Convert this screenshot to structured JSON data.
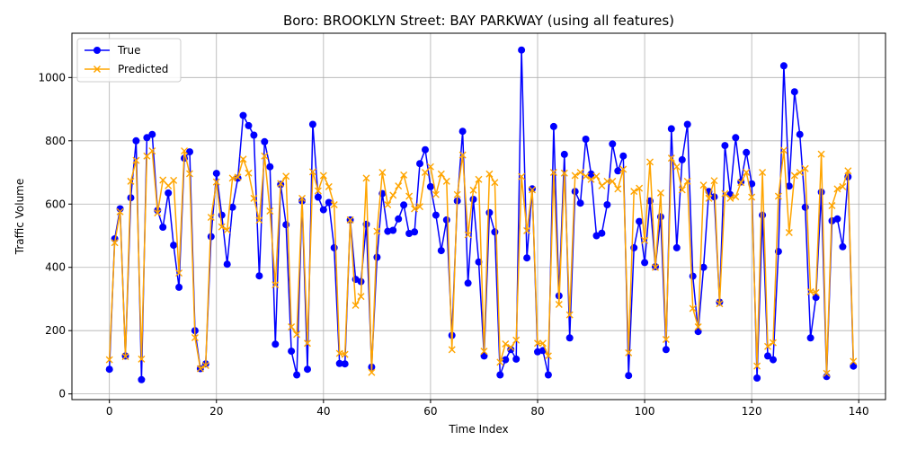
{
  "chart_data": {
    "type": "line",
    "title": "Boro: BROOKLYN Street: BAY PARKWAY (using all features)",
    "xlabel": "Time Index",
    "ylabel": "Traffic Volume",
    "xlim": [
      -7,
      145
    ],
    "ylim": [
      -18,
      1140
    ],
    "xticks": [
      0,
      20,
      40,
      60,
      80,
      100,
      120,
      140
    ],
    "yticks": [
      0,
      200,
      400,
      600,
      800,
      1000
    ],
    "xtick_labels": [
      "0",
      "20",
      "40",
      "60",
      "80",
      "100",
      "120",
      "140"
    ],
    "ytick_labels": [
      "0",
      "200",
      "400",
      "600",
      "800",
      "1000"
    ],
    "grid": true,
    "legend_position": "top-left",
    "x_start": 0,
    "series": [
      {
        "name": "True",
        "color": "#0000ff",
        "marker": "circle",
        "values": [
          78,
          490,
          585,
          120,
          620,
          800,
          45,
          810,
          820,
          580,
          527,
          635,
          470,
          337,
          745,
          765,
          200,
          80,
          95,
          497,
          697,
          565,
          410,
          590,
          682,
          880,
          848,
          818,
          373,
          797,
          718,
          157,
          662,
          535,
          135,
          60,
          610,
          78,
          852,
          622,
          582,
          605,
          462,
          96,
          95,
          550,
          362,
          355,
          536,
          85,
          432,
          633,
          514,
          517,
          553,
          597,
          507,
          512,
          728,
          772,
          655,
          565,
          453,
          550,
          185,
          610,
          830,
          350,
          615,
          417,
          120,
          573,
          512,
          60,
          108,
          140,
          110,
          1087,
          430,
          648,
          133,
          137,
          60,
          845,
          310,
          757,
          177,
          640,
          603,
          805,
          695,
          500,
          508,
          598,
          790,
          705,
          752,
          58,
          462,
          545,
          415,
          610,
          402,
          560,
          140,
          838,
          462,
          740,
          852,
          372,
          197,
          400,
          640,
          623,
          290,
          785,
          630,
          810,
          670,
          763,
          664,
          50,
          565,
          120,
          108,
          450,
          1037,
          657,
          955,
          820,
          590,
          177,
          305,
          638,
          55,
          547,
          553,
          465,
          686,
          88
        ]
      },
      {
        "name": "Predicted",
        "color": "#ffa500",
        "marker": "x",
        "values": [
          108,
          478,
          576,
          118,
          672,
          738,
          110,
          752,
          768,
          572,
          676,
          658,
          675,
          382,
          768,
          696,
          178,
          80,
          90,
          558,
          670,
          528,
          518,
          682,
          685,
          742,
          698,
          618,
          549,
          752,
          578,
          345,
          665,
          688,
          212,
          188,
          618,
          160,
          702,
          642,
          690,
          655,
          598,
          128,
          125,
          550,
          280,
          308,
          682,
          68,
          514,
          700,
          598,
          628,
          657,
          692,
          625,
          585,
          592,
          700,
          718,
          630,
          695,
          672,
          140,
          630,
          755,
          503,
          644,
          678,
          135,
          695,
          668,
          100,
          158,
          147,
          170,
          687,
          516,
          645,
          160,
          160,
          120,
          700,
          283,
          698,
          250,
          690,
          700,
          688,
          678,
          688,
          658,
          672,
          672,
          648,
          710,
          130,
          640,
          650,
          485,
          733,
          400,
          635,
          172,
          745,
          718,
          645,
          672,
          270,
          212,
          660,
          618,
          674,
          285,
          633,
          618,
          623,
          668,
          700,
          622,
          88,
          700,
          150,
          162,
          625,
          770,
          510,
          690,
          700,
          712,
          323,
          320,
          758,
          65,
          595,
          648,
          655,
          705,
          103
        ]
      }
    ]
  }
}
